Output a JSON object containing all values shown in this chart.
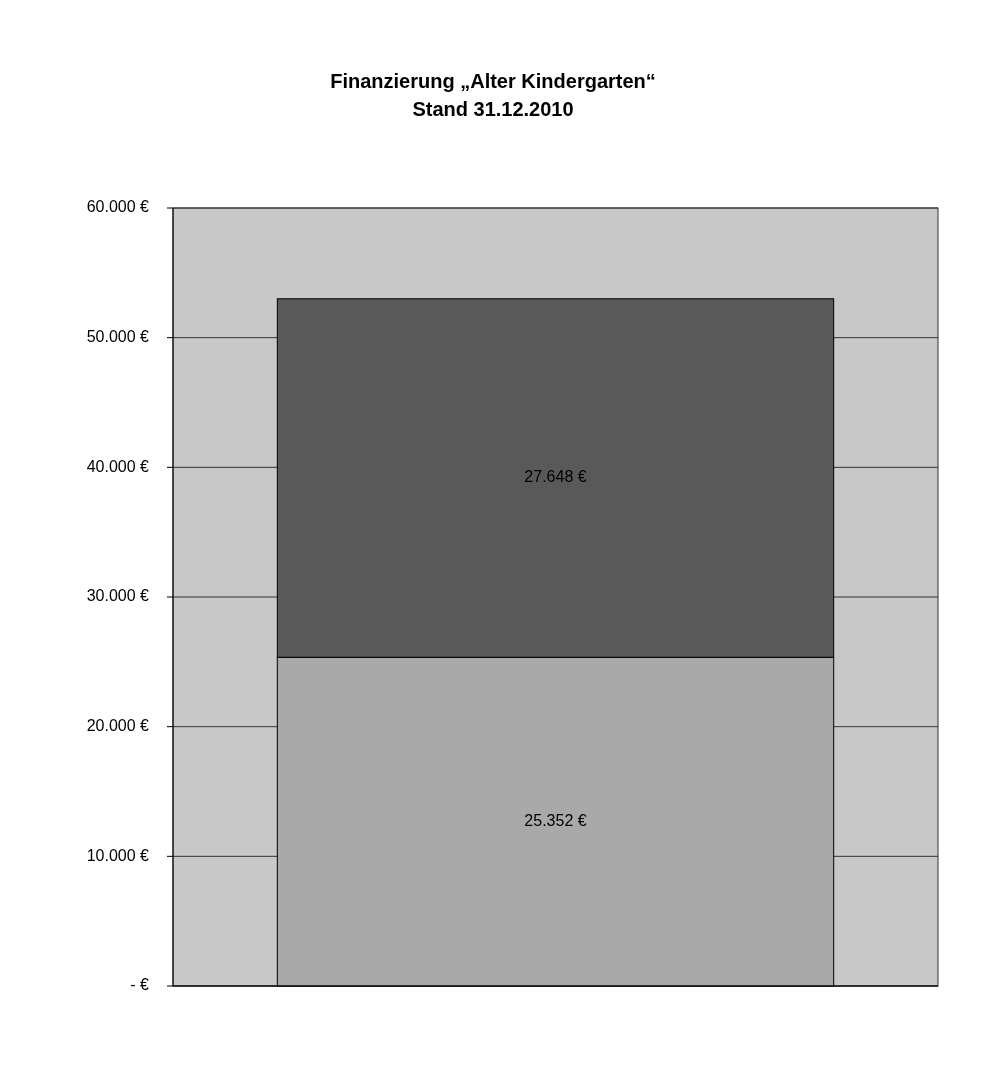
{
  "chart_data": {
    "type": "bar",
    "title": "Finanzierung „Alter Kindergarten“",
    "subtitle": "Stand 31.12.2010",
    "categories": [
      null
    ],
    "stacked": true,
    "series": [
      {
        "color": "#a9a9a9",
        "values": [
          25352
        ],
        "value_labels": [
          "25.352 €"
        ]
      },
      {
        "color": "#595959",
        "values": [
          27648
        ],
        "value_labels": [
          "27.648 €"
        ]
      }
    ],
    "ylim": [
      0,
      60000
    ],
    "yticks": [
      {
        "value": 0,
        "label": "- €"
      },
      {
        "value": 10000,
        "label": "10.000 €"
      },
      {
        "value": 20000,
        "label": "20.000 €"
      },
      {
        "value": 30000,
        "label": "30.000 €"
      },
      {
        "value": 40000,
        "label": "40.000 €"
      },
      {
        "value": 50000,
        "label": "50.000 €"
      },
      {
        "value": 60000,
        "label": "60.000 €"
      }
    ],
    "grid": "y"
  }
}
